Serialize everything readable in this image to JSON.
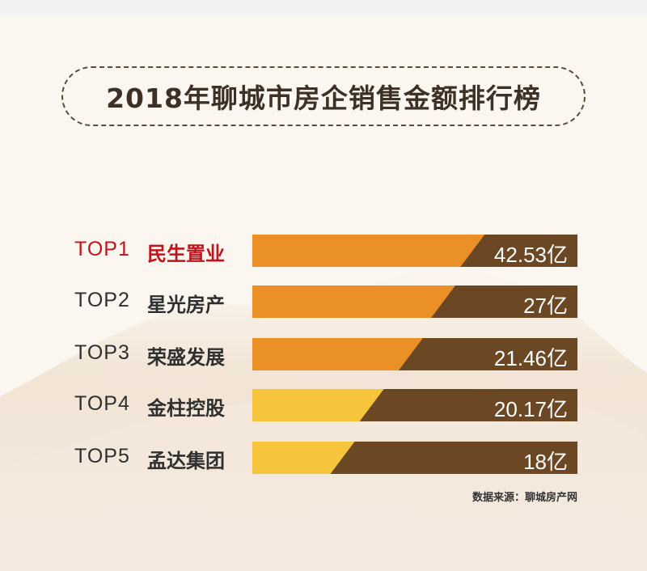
{
  "title": "2018年聊城市房企销售金额排行榜",
  "source": "数据来源：聊城房产网",
  "colors": {
    "bar_dark": "#6b4723",
    "bar_orange": "#eb8f27",
    "bar_yellow": "#f6c53b",
    "rank1_text": "#c0141d"
  },
  "chart_data": {
    "type": "bar",
    "categories": [
      "民生置业",
      "星光房产",
      "荣盛发展",
      "金柱控股",
      "孟达集团"
    ],
    "ranks": [
      "TOP1",
      "TOP2",
      "TOP3",
      "TOP4",
      "TOP5"
    ],
    "values": [
      42.53,
      27,
      21.46,
      20.17,
      18
    ],
    "value_labels": [
      "42.53亿",
      "27亿",
      "21.46亿",
      "20.17亿",
      "18亿"
    ],
    "fill_fraction": [
      0.64,
      0.55,
      0.45,
      0.33,
      0.24
    ],
    "fill_colors": [
      "#eb8f27",
      "#eb8f27",
      "#eb8f27",
      "#f6c53b",
      "#f6c53b"
    ]
  }
}
